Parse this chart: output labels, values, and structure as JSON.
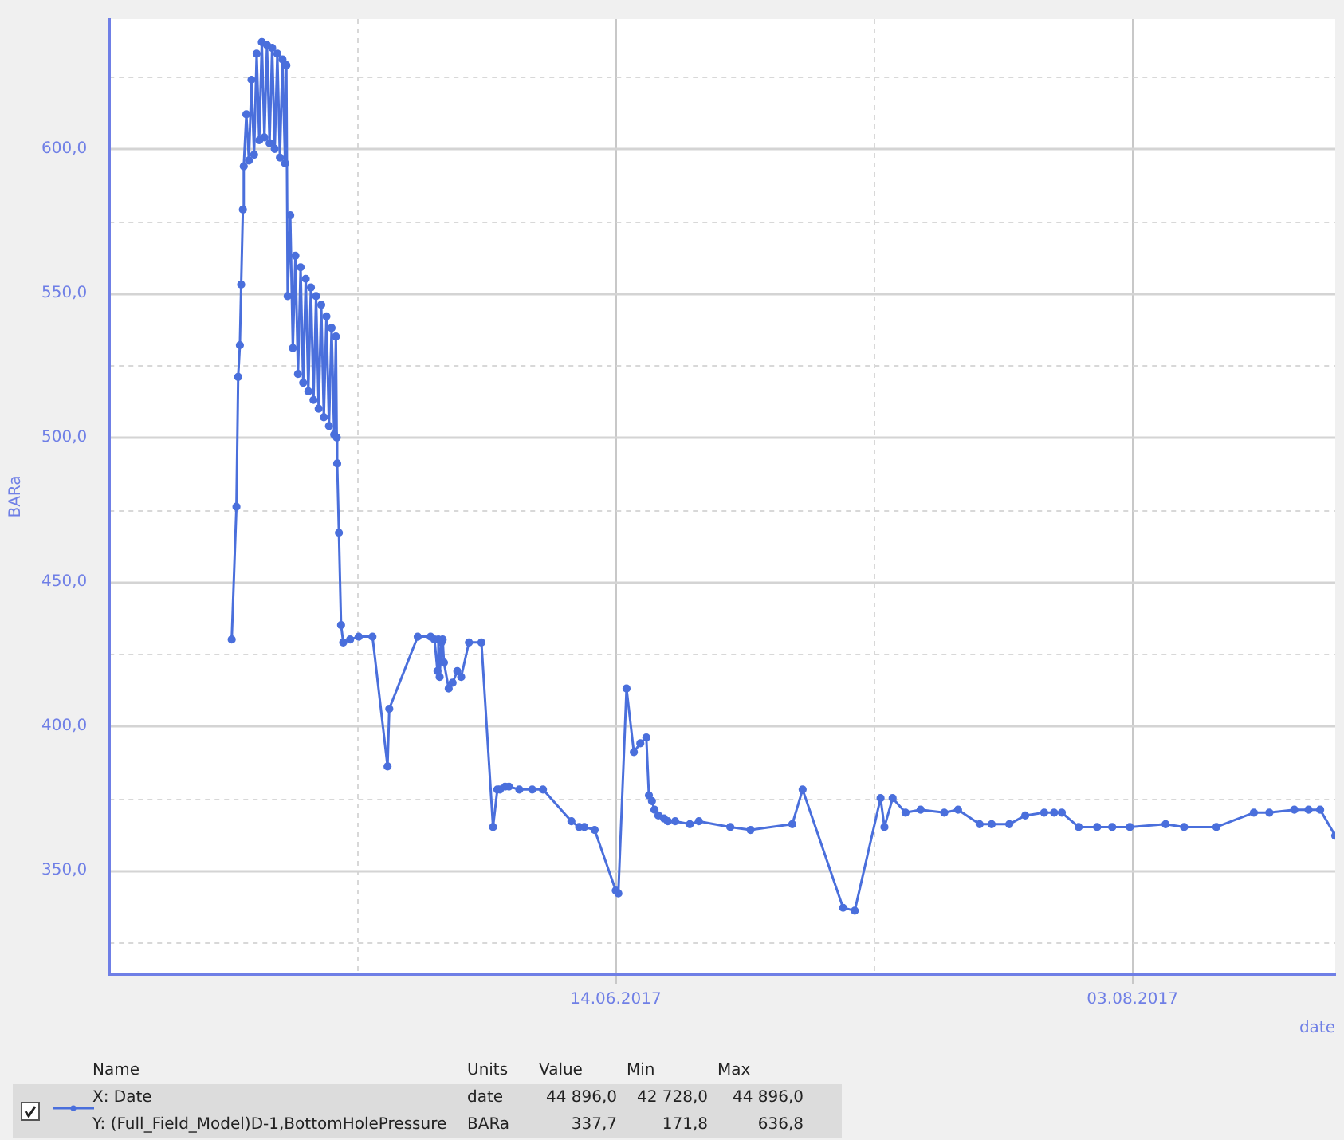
{
  "chart_data": {
    "type": "line",
    "xlabel": "date",
    "ylabel": "BARa",
    "grid": true,
    "legend": false,
    "marker": "circle",
    "line_style": "solid",
    "xlim": [
      "2017-04-26T00:00",
      "2017-08-22T15:00"
    ],
    "xticks": [
      {
        "value": "2017-05-20",
        "label": null
      },
      {
        "value": "2017-06-14",
        "label": "14.06.2017"
      },
      {
        "value": "2017-07-09",
        "label": null
      },
      {
        "value": "2017-08-03",
        "label": "03.08.2017"
      }
    ],
    "ylim": [
      314,
      645
    ],
    "yticks": [
      {
        "value": 325,
        "label": null
      },
      {
        "value": 350,
        "label": "350,0"
      },
      {
        "value": 375,
        "label": null
      },
      {
        "value": 400,
        "label": "400,0"
      },
      {
        "value": 425,
        "label": null
      },
      {
        "value": 450,
        "label": "450,0"
      },
      {
        "value": 475,
        "label": null
      },
      {
        "value": 500,
        "label": "500,0"
      },
      {
        "value": 525,
        "label": null
      },
      {
        "value": 550,
        "label": "550,0"
      },
      {
        "value": 575,
        "label": null
      },
      {
        "value": 600,
        "label": "600,0"
      },
      {
        "value": 625,
        "label": null
      }
    ],
    "annotations": [
      "Name",
      "Units",
      "Value",
      "Min",
      "Max",
      "X:  Date",
      "date",
      "44 896,0",
      "42 728,0",
      "44 896,0",
      "Y:  (Full_Field_Model)D-1,BottomHolePressure",
      "BARa",
      "337,7",
      "171,8",
      "636,8"
    ],
    "series": [
      {
        "color": "#4a6fdc",
        "x": [
          "2017-05-07T20:00",
          "2017-05-08T07:00",
          "2017-05-08T11:00",
          "2017-05-08T15:00",
          "2017-05-08T18:00",
          "2017-05-08T22:00",
          "2017-05-09T00:00",
          "2017-05-09T06:00",
          "2017-05-09T12:00",
          "2017-05-09T18:00",
          "2017-05-10T00:00",
          "2017-05-10T06:00",
          "2017-05-10T12:00",
          "2017-05-10T18:00",
          "2017-05-11T00:00",
          "2017-05-11T06:00",
          "2017-05-11T12:00",
          "2017-05-11T18:00",
          "2017-05-12T00:00",
          "2017-05-12T06:00",
          "2017-05-12T12:00",
          "2017-05-12T18:00",
          "2017-05-13T00:00",
          "2017-05-13T03:00",
          "2017-05-13T06:00",
          "2017-05-13T12:00",
          "2017-05-13T18:00",
          "2017-05-14T00:00",
          "2017-05-14T06:00",
          "2017-05-14T12:00",
          "2017-05-14T18:00",
          "2017-05-15T00:00",
          "2017-05-15T06:00",
          "2017-05-15T12:00",
          "2017-05-15T18:00",
          "2017-05-16T00:00",
          "2017-05-16T06:00",
          "2017-05-16T12:00",
          "2017-05-16T18:00",
          "2017-05-17T00:00",
          "2017-05-17T06:00",
          "2017-05-17T12:00",
          "2017-05-17T18:00",
          "2017-05-17T22:00",
          "2017-05-18T00:00",
          "2017-05-18T01:00",
          "2017-05-18T05:00",
          "2017-05-18T10:00",
          "2017-05-18T15:00",
          "2017-05-19T07:00",
          "2017-05-20T03:00",
          "2017-05-21T11:00",
          "2017-05-22T22:00",
          "2017-05-23T02:00",
          "2017-05-25T20:00",
          "2017-05-27T02:00",
          "2017-05-27T11:00",
          "2017-05-27T18:00",
          "2017-05-27T20:00",
          "2017-05-27T23:00",
          "2017-05-28T03:00",
          "2017-05-28T06:00",
          "2017-05-28T09:00",
          "2017-05-28T20:00",
          "2017-05-29T05:00",
          "2017-05-29T16:00",
          "2017-05-30T01:00",
          "2017-05-30T19:00",
          "2017-06-01T00:00",
          "2017-06-02T03:00",
          "2017-06-02T13:00",
          "2017-06-02T19:00",
          "2017-06-03T07:00",
          "2017-06-03T16:00",
          "2017-06-04T16:00",
          "2017-06-05T22:00",
          "2017-06-06T23:00",
          "2017-06-09T17:00",
          "2017-06-10T11:00",
          "2017-06-10T23:00",
          "2017-06-11T23:00",
          "2017-06-14T00:00",
          "2017-06-14T06:00",
          "2017-06-15T01:00",
          "2017-06-15T18:00",
          "2017-06-16T09:00",
          "2017-06-16T23:00",
          "2017-06-17T05:00",
          "2017-06-17T12:00",
          "2017-06-17T18:00",
          "2017-06-18T03:00",
          "2017-06-18T16:00",
          "2017-06-19T01:00",
          "2017-06-19T18:00",
          "2017-06-21T04:00",
          "2017-06-22T01:00",
          "2017-06-25T02:00",
          "2017-06-27T01:00",
          "2017-07-01T02:00",
          "2017-07-02T02:00",
          "2017-07-06T00:00",
          "2017-07-07T03:00",
          "2017-07-09T15:00",
          "2017-07-10T00:00",
          "2017-07-10T19:00",
          "2017-07-12T01:00",
          "2017-07-13T12:00",
          "2017-07-15T19:00",
          "2017-07-17T03:00",
          "2017-07-19T05:00",
          "2017-07-20T09:00",
          "2017-07-22T02:00",
          "2017-07-23T15:00",
          "2017-07-25T11:00",
          "2017-07-26T10:00",
          "2017-07-27T04:00",
          "2017-07-28T19:00",
          "2017-07-30T14:00",
          "2017-08-01T01:00",
          "2017-08-02T18:00",
          "2017-08-06T05:00",
          "2017-08-08T00:00",
          "2017-08-11T03:00",
          "2017-08-14T18:00",
          "2017-08-16T06:00",
          "2017-08-18T16:00",
          "2017-08-20T01:00",
          "2017-08-21T04:00",
          "2017-08-22T15:00"
        ],
        "values": [
          430,
          476,
          521,
          532,
          553,
          579,
          594,
          612,
          596,
          624,
          598,
          633,
          603,
          637,
          604,
          636,
          602,
          635,
          600,
          633,
          597,
          631,
          595,
          629,
          549,
          577,
          531,
          563,
          522,
          559,
          519,
          555,
          516,
          552,
          513,
          549,
          510,
          546,
          507,
          542,
          504,
          538,
          501,
          535,
          500,
          491,
          467,
          435,
          429,
          430,
          431,
          431,
          386,
          406,
          431,
          431,
          430,
          419,
          430,
          417,
          429,
          430,
          422,
          413,
          415,
          419,
          417,
          429,
          429,
          365,
          378,
          378,
          379,
          379,
          378,
          378,
          378,
          367,
          365,
          365,
          364,
          343,
          342,
          413,
          391,
          394,
          396,
          376,
          374,
          371,
          369,
          368,
          367,
          367,
          366,
          367,
          365,
          364,
          366,
          378,
          337,
          336,
          375,
          365,
          375,
          370,
          371,
          370,
          371,
          366,
          366,
          366,
          369,
          370,
          370,
          370,
          365,
          365,
          365,
          365,
          366,
          365,
          365,
          370,
          370,
          371,
          371,
          371,
          362
        ]
      }
    ]
  }
}
